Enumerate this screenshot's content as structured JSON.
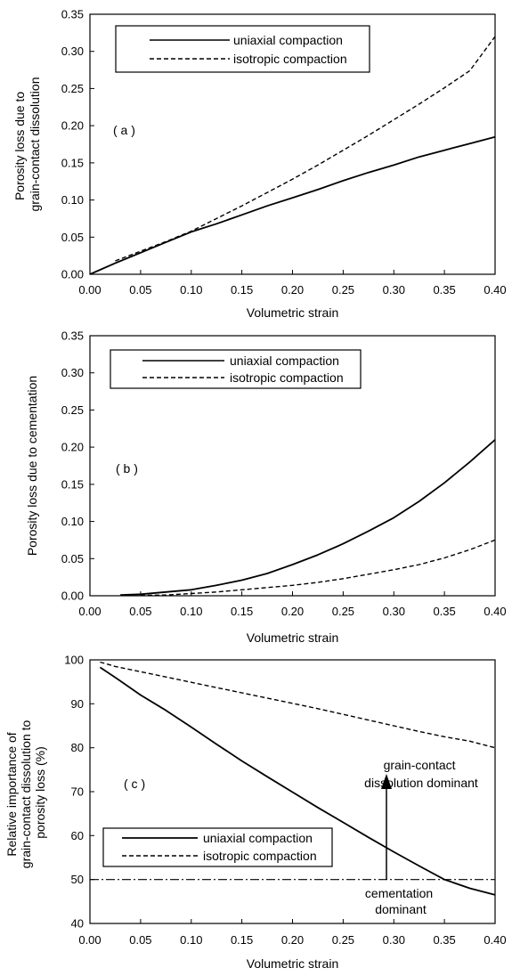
{
  "chart_data": [
    {
      "panel": "a",
      "type": "line",
      "panel_label": "( a )",
      "xlabel": "Volumetric strain",
      "ylabel": [
        "Porosity loss due to",
        "grain-contact dissolution"
      ],
      "xlim": [
        0,
        0.4
      ],
      "ylim": [
        0,
        0.35
      ],
      "xticks": [
        "0.00",
        "0.05",
        "0.10",
        "0.15",
        "0.20",
        "0.25",
        "0.30",
        "0.35",
        "0.40"
      ],
      "yticks": [
        "0.00",
        "0.05",
        "0.10",
        "0.15",
        "0.20",
        "0.25",
        "0.30",
        "0.35"
      ],
      "grid": false,
      "legend_position": "top",
      "series": [
        {
          "name": "uniaxial compaction",
          "style": "solid",
          "x": [
            0.0,
            0.025,
            0.05,
            0.075,
            0.1,
            0.125,
            0.15,
            0.175,
            0.2,
            0.225,
            0.25,
            0.275,
            0.3,
            0.325,
            0.35,
            0.375,
            0.4
          ],
          "y": [
            0.0,
            0.015,
            0.029,
            0.043,
            0.057,
            0.068,
            0.08,
            0.092,
            0.103,
            0.114,
            0.126,
            0.137,
            0.147,
            0.158,
            0.167,
            0.176,
            0.185
          ]
        },
        {
          "name": "isotropic compaction",
          "style": "dashed",
          "x": [
            0.025,
            0.05,
            0.075,
            0.1,
            0.125,
            0.15,
            0.175,
            0.2,
            0.225,
            0.25,
            0.275,
            0.3,
            0.325,
            0.35,
            0.375,
            0.4
          ],
          "y": [
            0.018,
            0.031,
            0.044,
            0.058,
            0.075,
            0.092,
            0.11,
            0.128,
            0.147,
            0.167,
            0.187,
            0.208,
            0.229,
            0.251,
            0.274,
            0.32
          ]
        }
      ]
    },
    {
      "panel": "b",
      "type": "line",
      "panel_label": "( b )",
      "xlabel": "Volumetric strain",
      "ylabel": [
        "Porosity loss due to cementation"
      ],
      "xlim": [
        0,
        0.4
      ],
      "ylim": [
        0,
        0.35
      ],
      "xticks": [
        "0.00",
        "0.05",
        "0.10",
        "0.15",
        "0.20",
        "0.25",
        "0.30",
        "0.35",
        "0.40"
      ],
      "yticks": [
        "0.00",
        "0.05",
        "0.10",
        "0.15",
        "0.20",
        "0.25",
        "0.30",
        "0.35"
      ],
      "grid": false,
      "legend_position": "top",
      "series": [
        {
          "name": "uniaxial compaction",
          "style": "solid",
          "x": [
            0.03,
            0.05,
            0.075,
            0.1,
            0.125,
            0.15,
            0.175,
            0.2,
            0.225,
            0.25,
            0.275,
            0.3,
            0.325,
            0.35,
            0.375,
            0.4
          ],
          "y": [
            0.001,
            0.002,
            0.005,
            0.008,
            0.014,
            0.021,
            0.03,
            0.042,
            0.055,
            0.07,
            0.087,
            0.105,
            0.127,
            0.152,
            0.18,
            0.21
          ]
        },
        {
          "name": "isotropic compaction",
          "style": "dashed",
          "x": [
            0.05,
            0.075,
            0.1,
            0.125,
            0.15,
            0.175,
            0.2,
            0.225,
            0.25,
            0.275,
            0.3,
            0.325,
            0.35,
            0.375,
            0.4
          ],
          "y": [
            0.0005,
            0.001,
            0.003,
            0.005,
            0.008,
            0.011,
            0.014,
            0.018,
            0.023,
            0.029,
            0.035,
            0.042,
            0.051,
            0.062,
            0.075
          ]
        }
      ]
    },
    {
      "panel": "c",
      "type": "line",
      "panel_label": "( c )",
      "xlabel": "Volumetric strain",
      "ylabel": [
        "Relative importance of",
        "grain-contact dissolution to",
        "porosity loss  (%)"
      ],
      "xlim": [
        0,
        0.4
      ],
      "ylim": [
        40,
        100
      ],
      "xticks": [
        "0.00",
        "0.05",
        "0.10",
        "0.15",
        "0.20",
        "0.25",
        "0.30",
        "0.35",
        "0.40"
      ],
      "yticks": [
        "40",
        "50",
        "60",
        "70",
        "80",
        "90",
        "100"
      ],
      "grid": false,
      "legend_position": "bottom-left",
      "series": [
        {
          "name": "uniaxial compaction",
          "style": "solid",
          "x": [
            0.01,
            0.025,
            0.05,
            0.075,
            0.1,
            0.125,
            0.15,
            0.175,
            0.2,
            0.225,
            0.25,
            0.275,
            0.3,
            0.325,
            0.35,
            0.375,
            0.4
          ],
          "y": [
            98.3,
            96,
            92,
            88.5,
            84.7,
            80.8,
            77,
            73.4,
            69.9,
            66.4,
            63,
            59.6,
            56.3,
            53.1,
            50,
            48,
            46.5
          ]
        },
        {
          "name": "isotropic compaction",
          "style": "dashed",
          "x": [
            0.01,
            0.025,
            0.05,
            0.075,
            0.1,
            0.125,
            0.15,
            0.175,
            0.2,
            0.225,
            0.25,
            0.275,
            0.3,
            0.325,
            0.35,
            0.375,
            0.4
          ],
          "y": [
            99.5,
            98.5,
            97.3,
            96.1,
            94.9,
            93.7,
            92.5,
            91.3,
            90.1,
            88.9,
            87.6,
            86.3,
            85,
            83.7,
            82.5,
            81.5,
            80
          ]
        }
      ],
      "reference_line": {
        "y": 50,
        "style": "dash-dot"
      },
      "annotations": {
        "upper": [
          "grain-contact",
          "dissolution dominant"
        ],
        "lower": [
          "cementation",
          "dominant"
        ],
        "arrow": {
          "x": 0.293,
          "y_from": 50,
          "y_to": 75
        }
      }
    }
  ]
}
